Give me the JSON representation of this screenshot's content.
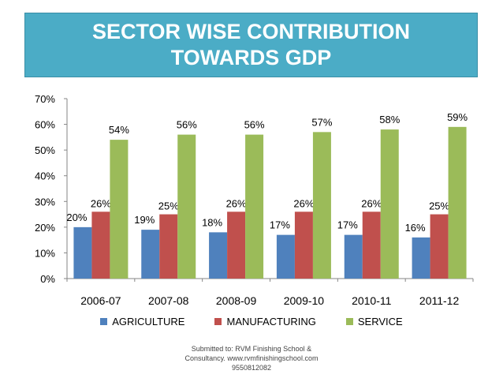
{
  "title_line1": "SECTOR WISE CONTRIBUTION",
  "title_line2": "TOWARDS GDP",
  "chart_data": {
    "type": "bar",
    "categories": [
      "2006-07",
      "2007-08",
      "2008-09",
      "2009-10",
      "2010-11",
      "2011-12"
    ],
    "series": [
      {
        "name": "AGRICULTURE",
        "color": "#4f81bd",
        "values": [
          20,
          19,
          18,
          17,
          17,
          16
        ]
      },
      {
        "name": "MANUFACTURING",
        "color": "#c0504d",
        "values": [
          26,
          25,
          26,
          26,
          26,
          25
        ]
      },
      {
        "name": "SERVICE",
        "color": "#9bbb59",
        "values": [
          54,
          56,
          56,
          57,
          58,
          59
        ]
      }
    ],
    "yticks": [
      "0%",
      "10%",
      "20%",
      "30%",
      "40%",
      "50%",
      "60%",
      "70%"
    ],
    "ylim": [
      0,
      70
    ],
    "value_suffix": "%",
    "legend_position": "bottom"
  },
  "footer": {
    "line1": "Submitted to: RVM Finishing School &",
    "line2": "Consultancy. www.rvmfinishingschool.com",
    "line3": "9550812082"
  }
}
